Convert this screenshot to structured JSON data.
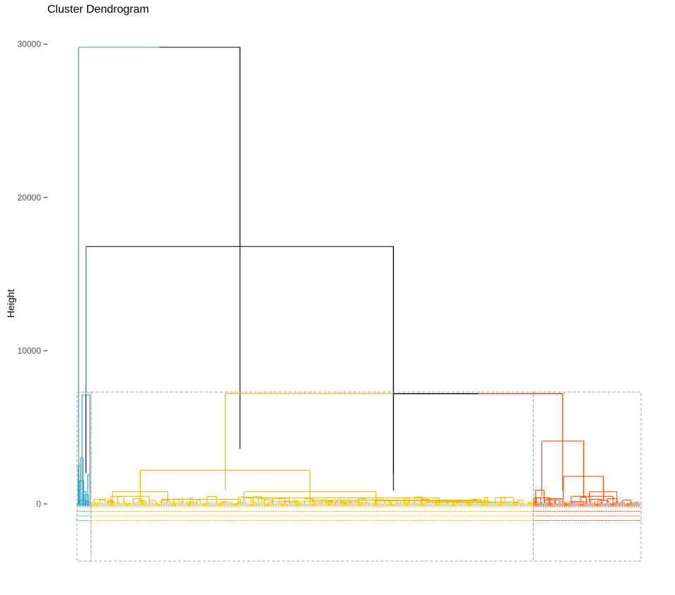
{
  "chart_data": {
    "type": "dendrogram",
    "title": "Cluster Dendrogram",
    "ylabel": "Height",
    "xlabel": "",
    "ylim": [
      -3700,
      30000
    ],
    "yticks": [
      0,
      10000,
      20000,
      30000
    ],
    "yticklabels": [
      "0",
      "10000",
      "20000",
      "30000"
    ],
    "grid": false,
    "clusters": [
      {
        "name": "1",
        "color": "#2ca1c4",
        "leaf_range": [
          0,
          0.025
        ]
      },
      {
        "name": "2",
        "color": "#e7b800",
        "leaf_range": [
          0.025,
          0.809
        ]
      },
      {
        "name": "3",
        "color": "#fc4e07",
        "leaf_range": [
          0.809,
          1.0
        ]
      }
    ],
    "link_color": "#000000",
    "rect_color": "#b3b3b3",
    "merges": [
      {
        "height": 29800,
        "left_x": 0.003,
        "right_x": 0.289,
        "left_color": "#2ca1c4",
        "right_color": "#000000"
      },
      {
        "height": 16800,
        "left_x": 0.016,
        "right_x": 0.561,
        "color": "#000000"
      },
      {
        "height": 7200,
        "left_x": 0.263,
        "right_x": 0.861,
        "left_color": "#e7b800",
        "right_color": "#000000"
      },
      {
        "height": 7200,
        "left_x": 0.561,
        "right_x": 0.861,
        "left_color": "#000000",
        "right_color": "#fc4e07"
      },
      {
        "height": 7100,
        "left_x": 0.009,
        "right_x": 0.023,
        "color": "#2ca1c4"
      },
      {
        "height": 2200,
        "left_x": 0.112,
        "right_x": 0.413,
        "color": "#e7b800"
      },
      {
        "height": 800,
        "left_x": 0.063,
        "right_x": 0.161,
        "color": "#e7b800"
      },
      {
        "height": 800,
        "left_x": 0.296,
        "right_x": 0.53,
        "color": "#e7b800"
      },
      {
        "height": 4100,
        "left_x": 0.824,
        "right_x": 0.898,
        "color": "#fc4e07"
      },
      {
        "height": 1800,
        "left_x": 0.862,
        "right_x": 0.933,
        "color": "#fc4e07"
      },
      {
        "height": 900,
        "left_x": 0.813,
        "right_x": 0.828,
        "color": "#fc4e07"
      },
      {
        "height": 800,
        "left_x": 0.908,
        "right_x": 0.957,
        "color": "#fc4e07"
      }
    ]
  }
}
